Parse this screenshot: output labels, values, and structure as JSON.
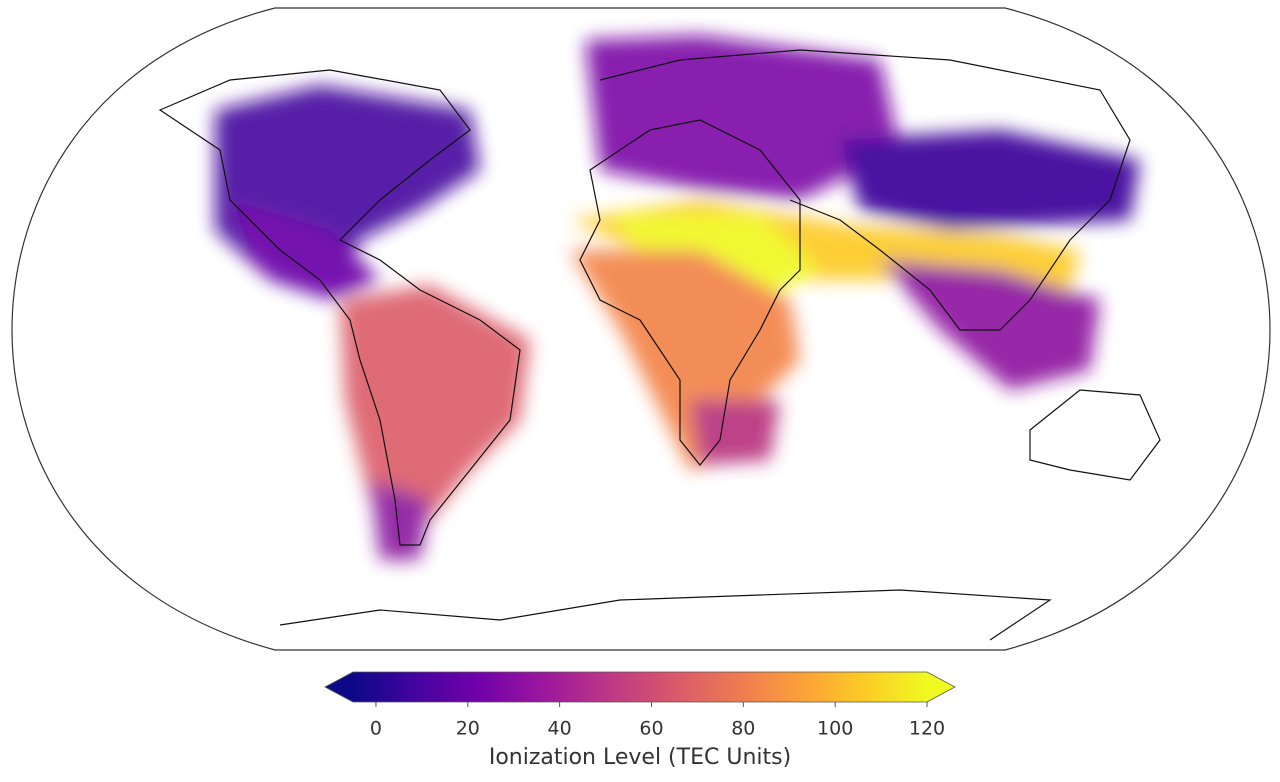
{
  "chart_data": {
    "type": "colorbar",
    "xlabel": "Ionization Level (TEC Units)",
    "xlim": [
      -5,
      120
    ],
    "xticks": [
      0,
      20,
      40,
      60,
      80,
      100,
      120
    ],
    "extend": "both",
    "colormap": [
      "#0d0887",
      "#46039f",
      "#7201a8",
      "#9c179e",
      "#bd3786",
      "#d8576b",
      "#ed7953",
      "#fb9f3a",
      "#fdca26",
      "#f0f921"
    ]
  }
}
